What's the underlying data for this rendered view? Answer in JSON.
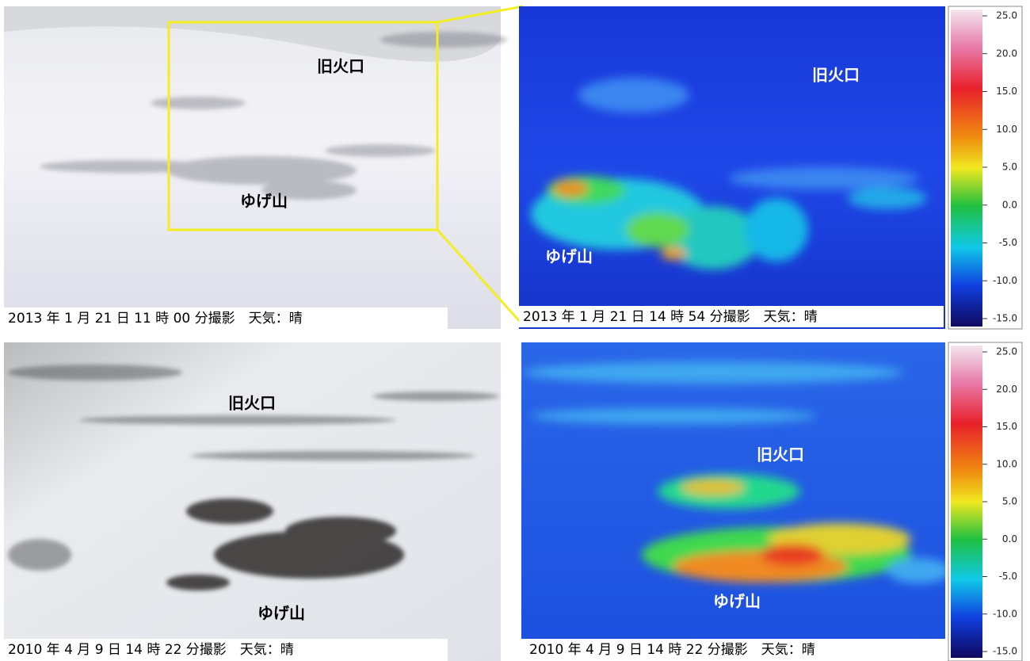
{
  "panels": [
    {
      "caption": "2013 年 1 月 21 日 11 時 00 分撮影　天気：晴",
      "labels": [
        "旧火口",
        "ゆげ山"
      ]
    },
    {
      "caption": "2013 年 1 月 21 日 14 時 54 分撮影　天気：晴",
      "labels": [
        "旧火口",
        "ゆげ山"
      ]
    },
    {
      "caption": "2010 年 4 月 9 日 14 時 22 分撮影　天気：晴",
      "labels": [
        "旧火口",
        "ゆげ山"
      ]
    },
    {
      "caption": "2010 年 4 月 9 日 14 時 22 分撮影　天気：晴",
      "labels": [
        "旧火口",
        "ゆげ山"
      ]
    }
  ],
  "colorbar": {
    "ticks": [
      {
        "value": 25,
        "label": "25.0"
      },
      {
        "value": 20,
        "label": "20.0"
      },
      {
        "value": 15,
        "label": "15.0"
      },
      {
        "value": 10,
        "label": "10.0"
      },
      {
        "value": 5,
        "label": "5.0"
      },
      {
        "value": 0,
        "label": "0.0"
      },
      {
        "value": -5,
        "label": "-5.0"
      },
      {
        "value": -10,
        "label": "-10.0"
      },
      {
        "value": -15,
        "label": "-15.0"
      }
    ]
  }
}
